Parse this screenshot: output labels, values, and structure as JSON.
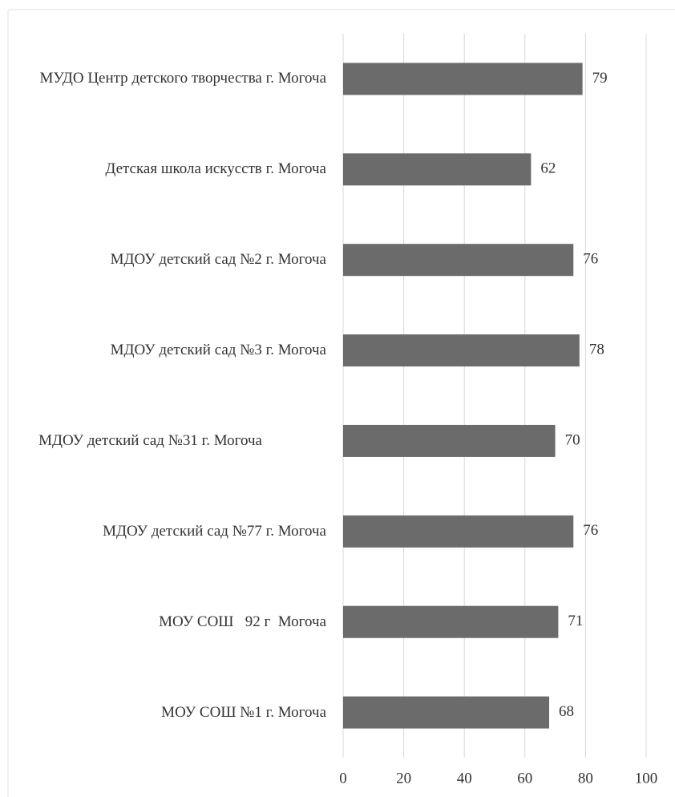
{
  "chart_data": {
    "type": "bar",
    "orientation": "horizontal",
    "categories": [
      "МУДО Центр детского творчества г. Могоча",
      "Детская школа искусств г. Могоча",
      "МДОУ детский сад №2 г. Могоча",
      "МДОУ детский сад №3 г. Могоча",
      "МДОУ детский сад №31 г. Могоча",
      "МДОУ детский сад №77 г. Могоча",
      "МОУ СОШ   92 г  Могоча",
      "МОУ СОШ №1 г. Могоча"
    ],
    "values": [
      79,
      62,
      76,
      78,
      70,
      76,
      71,
      68
    ],
    "color": "#6b6b6b",
    "xlim": [
      0,
      100
    ],
    "xticks": [
      0,
      20,
      40,
      60,
      80,
      100
    ],
    "grid": true
  }
}
